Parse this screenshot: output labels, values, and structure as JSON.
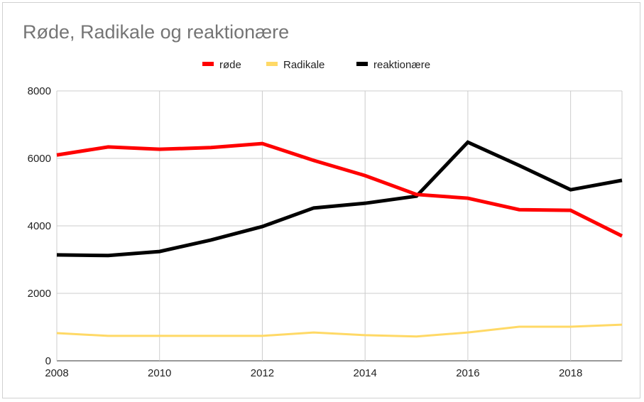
{
  "chart_data": {
    "type": "line",
    "title": "Røde, Radikale og reaktionære",
    "x": [
      2008,
      2009,
      2010,
      2011,
      2012,
      2013,
      2014,
      2015,
      2016,
      2017,
      2018,
      2019
    ],
    "xlim": [
      2008,
      2019
    ],
    "ylim": [
      0,
      8000
    ],
    "x_ticks": [
      "2008",
      "2010",
      "2012",
      "2014",
      "2016",
      "2018"
    ],
    "y_ticks": [
      "0",
      "2000",
      "4000",
      "6000",
      "8000"
    ],
    "grid": true,
    "legend_position": "top",
    "series": [
      {
        "name": "røde",
        "color": "#ff0000",
        "values": [
          6100,
          6340,
          6270,
          6320,
          6440,
          5940,
          5490,
          4930,
          4820,
          4480,
          4460,
          3700
        ]
      },
      {
        "name": "Radikale",
        "color": "#ffd966",
        "values": [
          820,
          740,
          740,
          740,
          740,
          840,
          760,
          720,
          840,
          1010,
          1010,
          1070
        ]
      },
      {
        "name": "reaktionære",
        "color": "#000000",
        "values": [
          3140,
          3120,
          3240,
          3580,
          3980,
          4530,
          4670,
          4880,
          6480,
          5790,
          5070,
          5350
        ]
      }
    ]
  }
}
